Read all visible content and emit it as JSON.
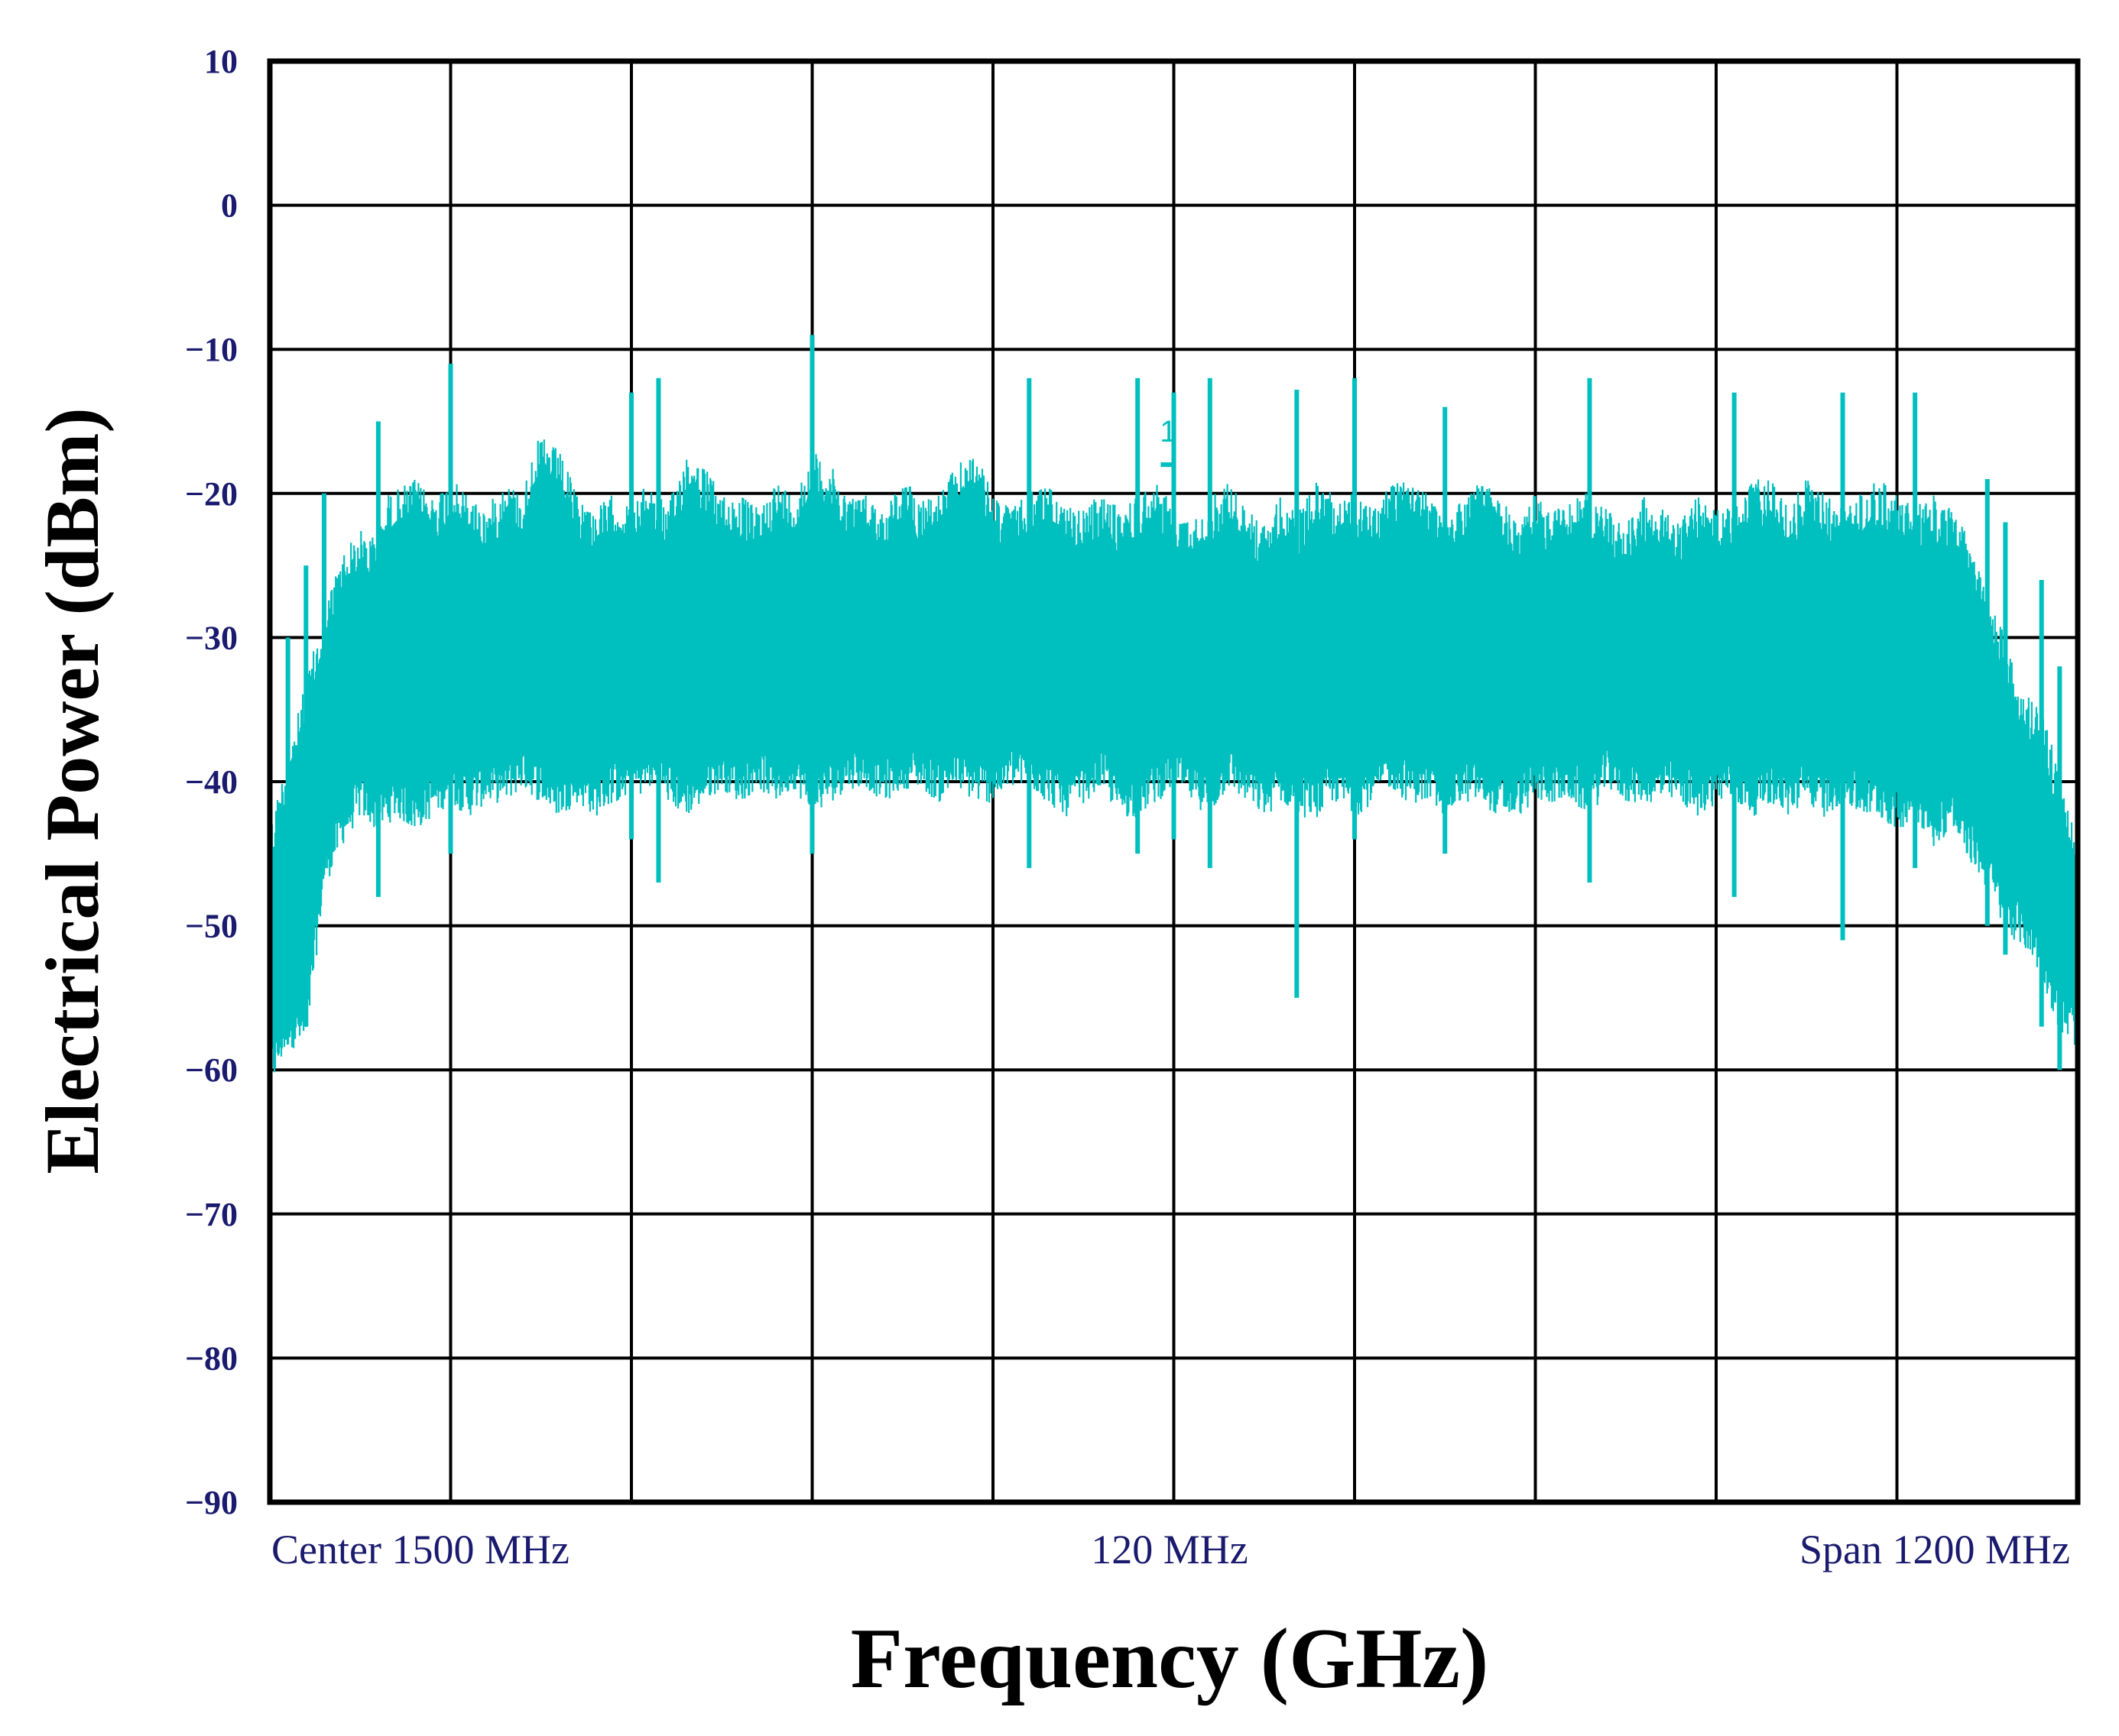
{
  "chart_data": {
    "type": "line",
    "xlabel": "Frequency (GHz)",
    "ylabel": "Electrical Power (dBm)",
    "ylim": [
      -90,
      10
    ],
    "yticks": [
      10,
      0,
      -10,
      -20,
      -30,
      -40,
      -50,
      -60,
      -70,
      -80,
      -90
    ],
    "ytick_labels": [
      "10",
      "0",
      "−10",
      "−20",
      "−30",
      "−40",
      "−50",
      "−60",
      "−70",
      "−80",
      "−90"
    ],
    "x_divisions": 10,
    "xlim": [
      0,
      1
    ],
    "grid": true,
    "bottom_annotations": {
      "left": "Center 1500 MHz",
      "center": "120 MHz",
      "right": "Span 1200  MHz"
    },
    "marker": {
      "label": "1",
      "x": 0.497,
      "y": -18
    },
    "colors": {
      "trace": "#00bfbf",
      "tick_labels": "#1a1a6e",
      "grid": "#000000"
    },
    "series": [
      {
        "envelope_top": [
          [
            0.0,
            -43
          ],
          [
            0.01,
            -38
          ],
          [
            0.02,
            -33
          ],
          [
            0.03,
            -28
          ],
          [
            0.04,
            -24
          ],
          [
            0.05,
            -22.5
          ],
          [
            0.06,
            -23
          ],
          [
            0.065,
            -20
          ],
          [
            0.08,
            -19
          ],
          [
            0.09,
            -20
          ],
          [
            0.1,
            -19
          ],
          [
            0.11,
            -20
          ],
          [
            0.12,
            -21
          ],
          [
            0.13,
            -19
          ],
          [
            0.14,
            -20
          ],
          [
            0.145,
            -17
          ],
          [
            0.15,
            -16
          ],
          [
            0.16,
            -17
          ],
          [
            0.17,
            -20
          ],
          [
            0.18,
            -21
          ],
          [
            0.19,
            -20
          ],
          [
            0.2,
            -21
          ],
          [
            0.21,
            -19
          ],
          [
            0.22,
            -21
          ],
          [
            0.23,
            -17
          ],
          [
            0.24,
            -18
          ],
          [
            0.25,
            -20
          ],
          [
            0.26,
            -20
          ],
          [
            0.27,
            -21
          ],
          [
            0.28,
            -19
          ],
          [
            0.29,
            -20
          ],
          [
            0.3,
            -17
          ],
          [
            0.31,
            -18
          ],
          [
            0.32,
            -20
          ],
          [
            0.33,
            -20
          ],
          [
            0.34,
            -21
          ],
          [
            0.35,
            -19
          ],
          [
            0.36,
            -20
          ],
          [
            0.37,
            -20
          ],
          [
            0.38,
            -18
          ],
          [
            0.39,
            -17
          ],
          [
            0.4,
            -20
          ],
          [
            0.41,
            -21
          ],
          [
            0.42,
            -20
          ],
          [
            0.43,
            -19
          ],
          [
            0.44,
            -21
          ],
          [
            0.45,
            -21
          ],
          [
            0.46,
            -20
          ],
          [
            0.47,
            -21
          ],
          [
            0.48,
            -20
          ],
          [
            0.49,
            -19
          ],
          [
            0.5,
            -21
          ],
          [
            0.51,
            -22
          ],
          [
            0.52,
            -20
          ],
          [
            0.53,
            -19
          ],
          [
            0.54,
            -21
          ],
          [
            0.55,
            -22
          ],
          [
            0.56,
            -20
          ],
          [
            0.57,
            -21
          ],
          [
            0.58,
            -19
          ],
          [
            0.59,
            -20
          ],
          [
            0.6,
            -20
          ],
          [
            0.61,
            -21
          ],
          [
            0.62,
            -19
          ],
          [
            0.63,
            -18
          ],
          [
            0.64,
            -20
          ],
          [
            0.65,
            -22
          ],
          [
            0.66,
            -20
          ],
          [
            0.67,
            -19
          ],
          [
            0.68,
            -20
          ],
          [
            0.69,
            -22
          ],
          [
            0.7,
            -20
          ],
          [
            0.71,
            -21
          ],
          [
            0.72,
            -20
          ],
          [
            0.73,
            -20
          ],
          [
            0.74,
            -21
          ],
          [
            0.75,
            -22
          ],
          [
            0.76,
            -20
          ],
          [
            0.77,
            -21
          ],
          [
            0.78,
            -22
          ],
          [
            0.79,
            -20
          ],
          [
            0.8,
            -21
          ],
          [
            0.81,
            -21
          ],
          [
            0.82,
            -19
          ],
          [
            0.83,
            -19
          ],
          [
            0.84,
            -21
          ],
          [
            0.85,
            -19
          ],
          [
            0.86,
            -20
          ],
          [
            0.87,
            -21
          ],
          [
            0.88,
            -20
          ],
          [
            0.89,
            -19
          ],
          [
            0.9,
            -20
          ],
          [
            0.91,
            -21
          ],
          [
            0.92,
            -20
          ],
          [
            0.93,
            -21
          ],
          [
            0.94,
            -23
          ],
          [
            0.95,
            -27
          ],
          [
            0.96,
            -30
          ],
          [
            0.97,
            -34
          ],
          [
            0.98,
            -34
          ],
          [
            0.99,
            -40
          ],
          [
            1.0,
            -44
          ]
        ],
        "envelope_bottom": [
          [
            0.0,
            -60
          ],
          [
            0.01,
            -57
          ],
          [
            0.02,
            -57
          ],
          [
            0.03,
            -46
          ],
          [
            0.04,
            -43
          ],
          [
            0.05,
            -41
          ],
          [
            0.06,
            -42
          ],
          [
            0.07,
            -41
          ],
          [
            0.08,
            -42
          ],
          [
            0.09,
            -41
          ],
          [
            0.1,
            -40
          ],
          [
            0.11,
            -41
          ],
          [
            0.12,
            -40
          ],
          [
            0.13,
            -40
          ],
          [
            0.14,
            -39
          ],
          [
            0.15,
            -40
          ],
          [
            0.16,
            -41
          ],
          [
            0.17,
            -40
          ],
          [
            0.18,
            -41
          ],
          [
            0.19,
            -40
          ],
          [
            0.2,
            -40
          ],
          [
            0.21,
            -39
          ],
          [
            0.22,
            -40
          ],
          [
            0.23,
            -41
          ],
          [
            0.24,
            -40
          ],
          [
            0.25,
            -39
          ],
          [
            0.26,
            -40
          ],
          [
            0.27,
            -39
          ],
          [
            0.28,
            -40
          ],
          [
            0.29,
            -39
          ],
          [
            0.3,
            -41
          ],
          [
            0.31,
            -40
          ],
          [
            0.32,
            -39
          ],
          [
            0.33,
            -39
          ],
          [
            0.34,
            -40
          ],
          [
            0.35,
            -39
          ],
          [
            0.36,
            -39
          ],
          [
            0.37,
            -40
          ],
          [
            0.38,
            -39
          ],
          [
            0.39,
            -40
          ],
          [
            0.4,
            -40
          ],
          [
            0.41,
            -39
          ],
          [
            0.42,
            -39
          ],
          [
            0.43,
            -40
          ],
          [
            0.44,
            -41
          ],
          [
            0.45,
            -40
          ],
          [
            0.46,
            -39
          ],
          [
            0.47,
            -41
          ],
          [
            0.48,
            -41
          ],
          [
            0.49,
            -40
          ],
          [
            0.5,
            -39
          ],
          [
            0.51,
            -40
          ],
          [
            0.52,
            -41
          ],
          [
            0.53,
            -39
          ],
          [
            0.54,
            -40
          ],
          [
            0.55,
            -41
          ],
          [
            0.56,
            -40
          ],
          [
            0.57,
            -41
          ],
          [
            0.58,
            -41
          ],
          [
            0.59,
            -40
          ],
          [
            0.6,
            -41
          ],
          [
            0.61,
            -40
          ],
          [
            0.62,
            -39
          ],
          [
            0.63,
            -40
          ],
          [
            0.64,
            -40
          ],
          [
            0.65,
            -41
          ],
          [
            0.66,
            -40
          ],
          [
            0.67,
            -40
          ],
          [
            0.68,
            -41
          ],
          [
            0.69,
            -41
          ],
          [
            0.7,
            -40
          ],
          [
            0.71,
            -40
          ],
          [
            0.72,
            -40
          ],
          [
            0.73,
            -41
          ],
          [
            0.74,
            -39
          ],
          [
            0.75,
            -40
          ],
          [
            0.76,
            -40
          ],
          [
            0.77,
            -40
          ],
          [
            0.78,
            -40
          ],
          [
            0.79,
            -41
          ],
          [
            0.8,
            -40
          ],
          [
            0.81,
            -40
          ],
          [
            0.82,
            -41
          ],
          [
            0.83,
            -40
          ],
          [
            0.84,
            -41
          ],
          [
            0.85,
            -40
          ],
          [
            0.86,
            -41
          ],
          [
            0.87,
            -40
          ],
          [
            0.88,
            -41
          ],
          [
            0.89,
            -41
          ],
          [
            0.9,
            -42
          ],
          [
            0.91,
            -41
          ],
          [
            0.92,
            -43
          ],
          [
            0.93,
            -42
          ],
          [
            0.94,
            -44
          ],
          [
            0.95,
            -46
          ],
          [
            0.96,
            -49
          ],
          [
            0.97,
            -50
          ],
          [
            0.98,
            -52
          ],
          [
            0.99,
            -56
          ],
          [
            1.0,
            -57
          ]
        ],
        "deep_notches": [
          [
            0.0,
            -60
          ],
          [
            0.01,
            -57
          ],
          [
            0.02,
            -57
          ],
          [
            0.03,
            -46
          ],
          [
            0.06,
            -48
          ],
          [
            0.1,
            -45
          ],
          [
            0.2,
            -44
          ],
          [
            0.215,
            -47
          ],
          [
            0.3,
            -45
          ],
          [
            0.42,
            -46
          ],
          [
            0.48,
            -45
          ],
          [
            0.5,
            -44
          ],
          [
            0.52,
            -46
          ],
          [
            0.568,
            -55
          ],
          [
            0.6,
            -44
          ],
          [
            0.65,
            -45
          ],
          [
            0.73,
            -47
          ],
          [
            0.81,
            -48
          ],
          [
            0.87,
            -51
          ],
          [
            0.91,
            -46
          ],
          [
            0.95,
            -50
          ],
          [
            0.96,
            -52
          ],
          [
            0.98,
            -57
          ],
          [
            0.99,
            -60
          ]
        ]
      }
    ]
  }
}
